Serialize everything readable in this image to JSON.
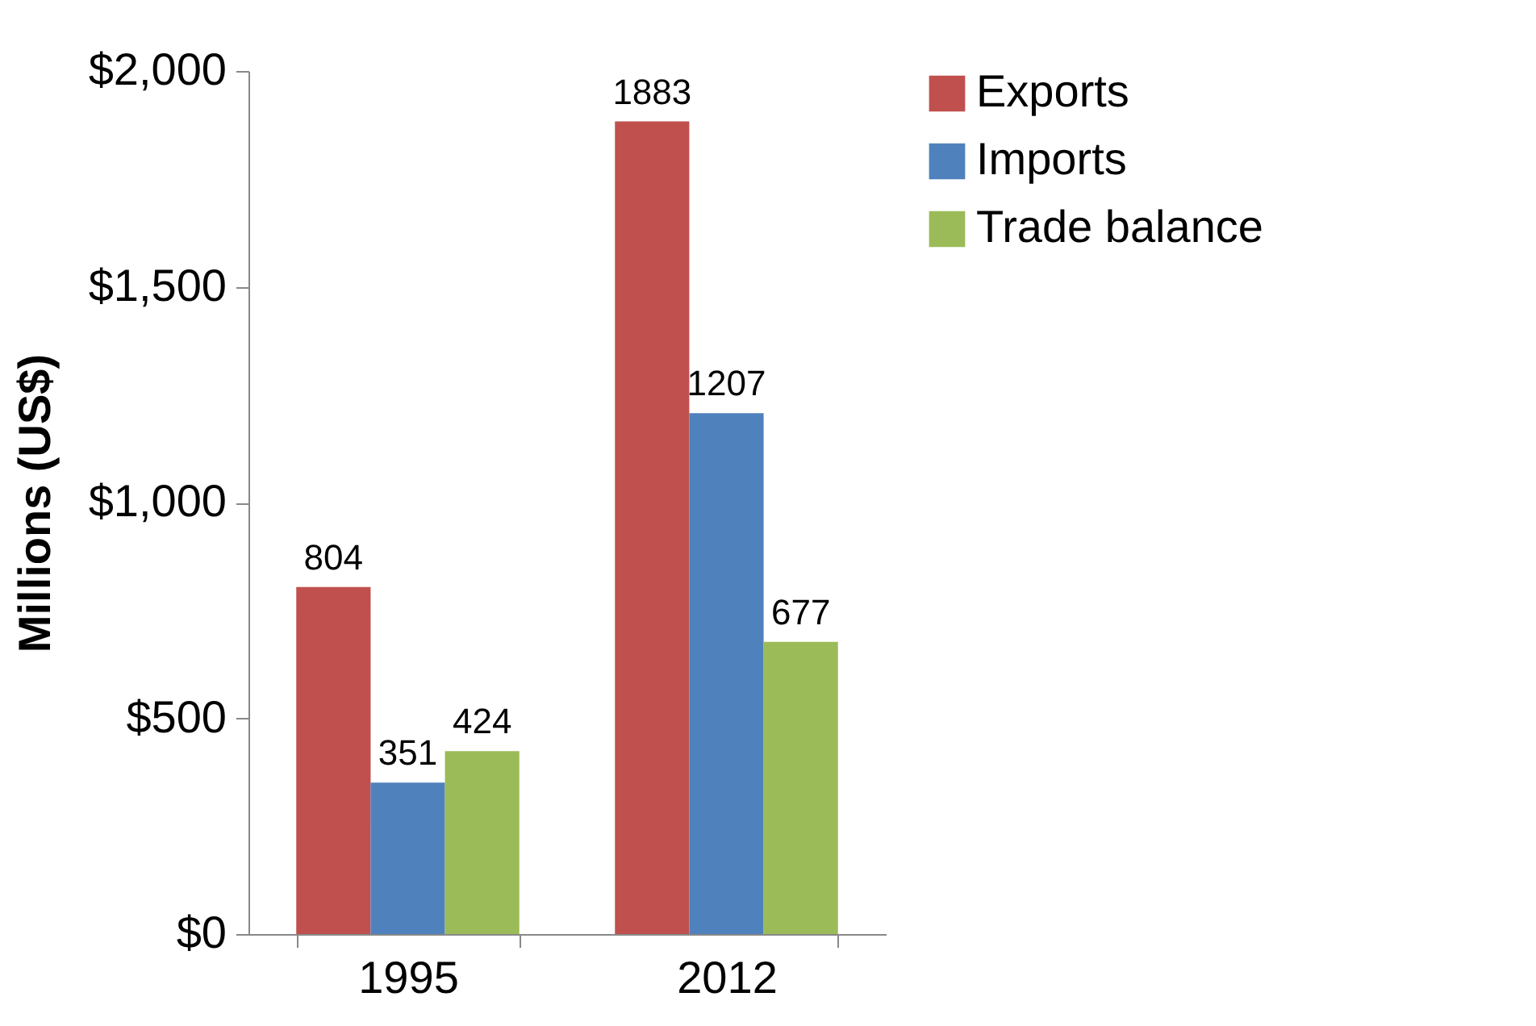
{
  "chart_data": {
    "type": "bar",
    "ylabel": "Millions (US$)",
    "categories": [
      "1995",
      "2012"
    ],
    "series": [
      {
        "name": "Exports",
        "color": "#c0504d",
        "values": [
          804,
          1883
        ]
      },
      {
        "name": "Imports",
        "color": "#4f81bd",
        "values": [
          351,
          1207
        ]
      },
      {
        "name": "Trade balance",
        "color": "#9bbb59",
        "values": [
          424,
          677
        ]
      }
    ],
    "ylim": [
      0,
      2000
    ],
    "yticks": [
      {
        "value": 0,
        "label": "$0"
      },
      {
        "value": 500,
        "label": "$500"
      },
      {
        "value": 1000,
        "label": "$1,000"
      },
      {
        "value": 1500,
        "label": "$1,500"
      },
      {
        "value": 2000,
        "label": "$2,000"
      }
    ],
    "data_labels": true,
    "legend": "right"
  }
}
